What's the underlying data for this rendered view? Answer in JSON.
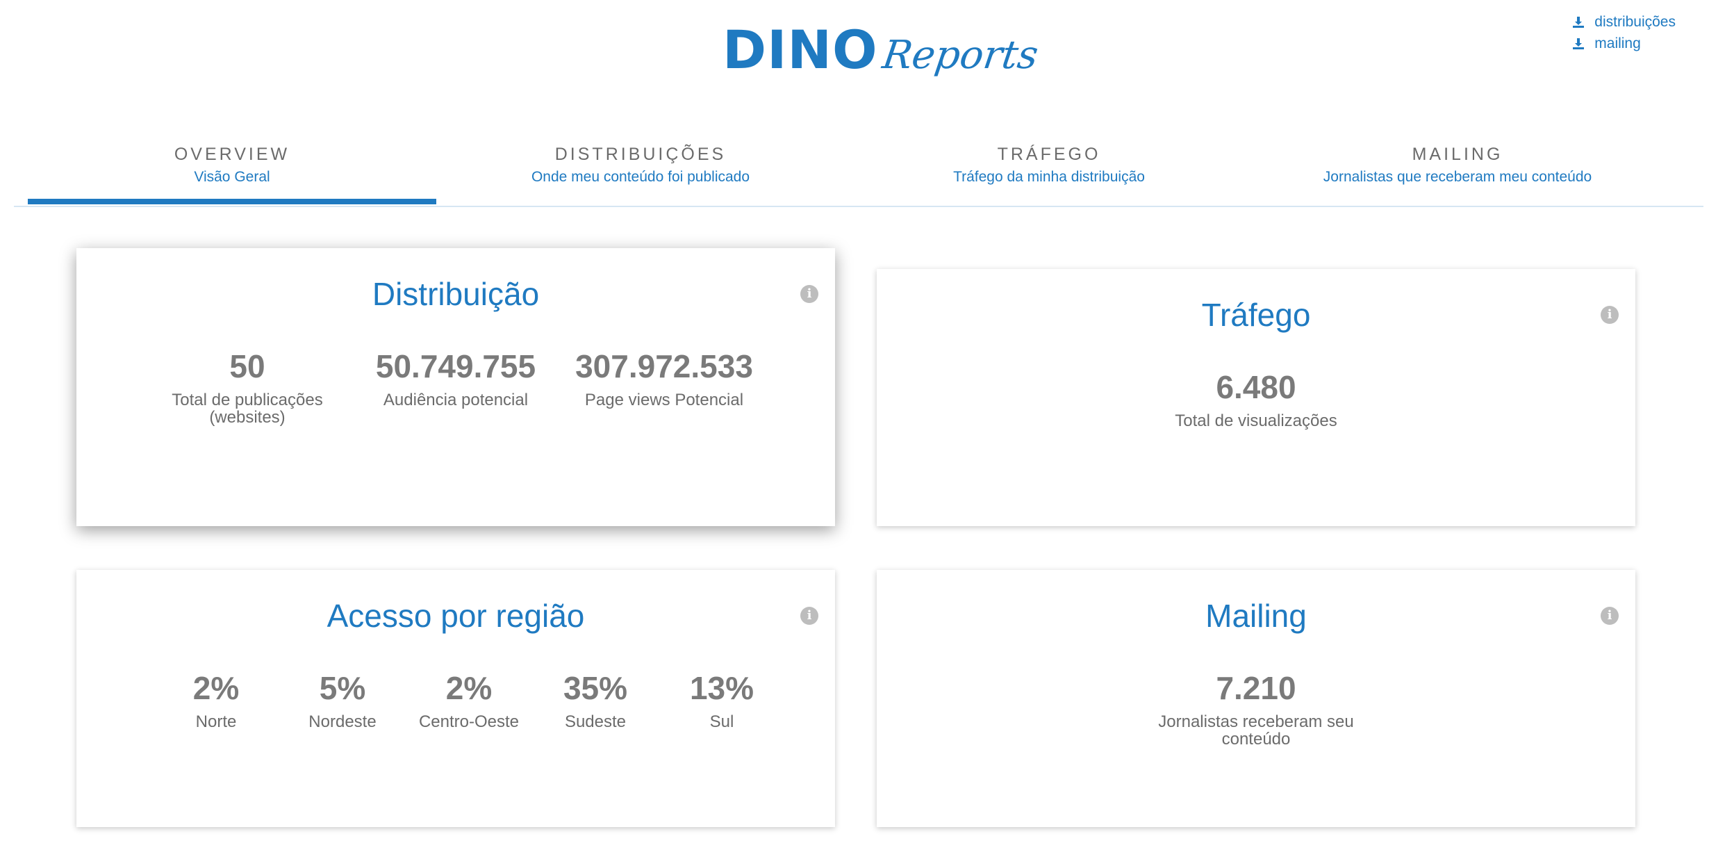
{
  "header": {
    "logo_main": "DINO",
    "logo_script": "Reports",
    "downloads": [
      {
        "label": "distribuições",
        "icon": "download-icon"
      },
      {
        "label": "mailing",
        "icon": "download-icon"
      }
    ]
  },
  "tabs": [
    {
      "label": "OVERVIEW",
      "sub": "Visão Geral",
      "active": true
    },
    {
      "label": "DISTRIBUIÇÕES",
      "sub": "Onde meu conteúdo foi publicado",
      "active": false
    },
    {
      "label": "TRÁFEGO",
      "sub": "Tráfego da minha distribuição",
      "active": false
    },
    {
      "label": "MAILING",
      "sub": "Jornalistas que receberam meu conteúdo",
      "active": false
    }
  ],
  "cards": {
    "distribuicao": {
      "title": "Distribuição",
      "stats": [
        {
          "value": "50",
          "label": "Total de publicações (websites)"
        },
        {
          "value": "50.749.755",
          "label": "Audiência potencial"
        },
        {
          "value": "307.972.533",
          "label": "Page views Potencial"
        }
      ]
    },
    "trafego": {
      "title": "Tráfego",
      "stats": [
        {
          "value": "6.480",
          "label": "Total de visualizações"
        }
      ]
    },
    "regiao": {
      "title": "Acesso por região",
      "stats": [
        {
          "value": "2%",
          "label": "Norte"
        },
        {
          "value": "5%",
          "label": "Nordeste"
        },
        {
          "value": "2%",
          "label": "Centro-Oeste"
        },
        {
          "value": "35%",
          "label": "Sudeste"
        },
        {
          "value": "13%",
          "label": "Sul"
        }
      ]
    },
    "mailing": {
      "title": "Mailing",
      "stats": [
        {
          "value": "7.210",
          "label": "Jornalistas receberam seu conteúdo"
        }
      ]
    }
  },
  "colors": {
    "accent": "#1f7ac1",
    "text": "#6b6b6b",
    "value": "#7a7a7a",
    "info_icon": "#bdbdbd"
  },
  "icons": {
    "info": "i"
  }
}
